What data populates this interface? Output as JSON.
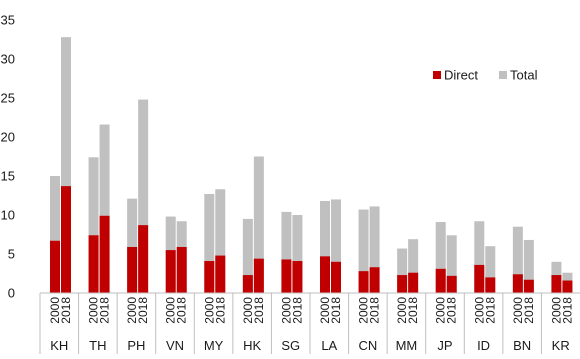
{
  "chart_data": {
    "type": "bar",
    "layout": "stacked-overlay",
    "categories": [
      "KH",
      "TH",
      "PH",
      "VN",
      "MY",
      "HK",
      "SG",
      "LA",
      "CN",
      "MM",
      "JP",
      "ID",
      "BN",
      "KR"
    ],
    "years": [
      "2000",
      "2018"
    ],
    "series": [
      {
        "name": "Direct",
        "color": "#c00000",
        "values": [
          [
            6.7,
            13.7
          ],
          [
            7.4,
            9.9
          ],
          [
            5.9,
            8.7
          ],
          [
            5.5,
            5.9
          ],
          [
            4.1,
            4.8
          ],
          [
            2.3,
            4.4
          ],
          [
            4.3,
            4.1
          ],
          [
            4.7,
            4.0
          ],
          [
            2.8,
            3.3
          ],
          [
            2.3,
            2.6
          ],
          [
            3.1,
            2.2
          ],
          [
            3.6,
            2.0
          ],
          [
            2.4,
            1.7
          ],
          [
            2.3,
            1.6
          ]
        ]
      },
      {
        "name": "Total",
        "color": "#c0c0c0",
        "values": [
          [
            15.0,
            32.8
          ],
          [
            17.4,
            21.6
          ],
          [
            12.1,
            24.8
          ],
          [
            9.8,
            9.2
          ],
          [
            12.7,
            13.3
          ],
          [
            9.5,
            17.5
          ],
          [
            10.4,
            10.0
          ],
          [
            11.8,
            12.0
          ],
          [
            10.7,
            11.1
          ],
          [
            5.7,
            6.9
          ],
          [
            9.1,
            7.4
          ],
          [
            9.2,
            6.0
          ],
          [
            8.5,
            6.8
          ],
          [
            4.0,
            2.6
          ]
        ]
      }
    ],
    "yticks": [
      0,
      5,
      10,
      15,
      20,
      25,
      30,
      35
    ],
    "ylim": [
      0,
      35
    ],
    "title": "",
    "xlabel": "",
    "ylabel": "",
    "grid": false,
    "legend": "upper-right"
  }
}
